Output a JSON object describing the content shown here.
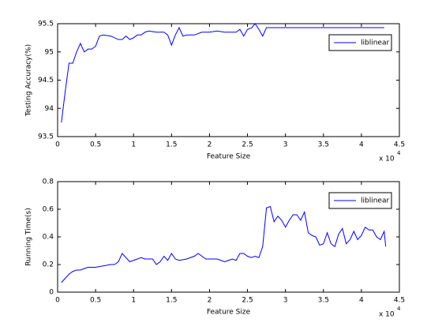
{
  "chart_data": [
    {
      "type": "line",
      "y_label": "Testing Accuracy(%)",
      "x_label": "Feature Size",
      "x_multiplier": "x 10",
      "x_multiplier_exponent": "4",
      "legend": "northeast",
      "xlim": [
        0,
        4.5
      ],
      "xticks": [
        0,
        0.5,
        1,
        1.5,
        2,
        2.5,
        3,
        3.5,
        4,
        4.5
      ],
      "ylim": [
        93.5,
        95.5
      ],
      "yticks": [
        93.5,
        94,
        94.5,
        95,
        95.5
      ],
      "x": [
        0.05,
        0.1,
        0.15,
        0.2,
        0.25,
        0.3,
        0.35,
        0.4,
        0.45,
        0.5,
        0.55,
        0.6,
        0.7,
        0.8,
        0.85,
        0.9,
        0.95,
        1.0,
        1.05,
        1.1,
        1.15,
        1.2,
        1.3,
        1.4,
        1.45,
        1.5,
        1.55,
        1.6,
        1.65,
        1.7,
        1.8,
        1.9,
        2.0,
        2.1,
        2.2,
        2.3,
        2.35,
        2.4,
        2.45,
        2.5,
        2.55,
        2.6,
        2.65,
        2.7,
        2.75,
        4.3
      ],
      "series": [
        {
          "name": "liblinear",
          "color": "#0000ff",
          "values": [
            93.75,
            94.3,
            94.8,
            94.8,
            95.0,
            95.15,
            95.0,
            95.05,
            95.05,
            95.1,
            95.28,
            95.3,
            95.28,
            95.22,
            95.22,
            95.28,
            95.22,
            95.25,
            95.3,
            95.3,
            95.35,
            95.37,
            95.35,
            95.35,
            95.3,
            95.12,
            95.3,
            95.43,
            95.28,
            95.3,
            95.3,
            95.35,
            95.35,
            95.37,
            95.35,
            95.35,
            95.35,
            95.4,
            95.28,
            95.4,
            95.42,
            95.5,
            95.4,
            95.28,
            95.43,
            95.43
          ]
        }
      ]
    },
    {
      "type": "line",
      "y_label": "Running Time(s)",
      "x_label": "Feature Size",
      "x_multiplier": "x 10",
      "x_multiplier_exponent": "4",
      "legend": "northeast",
      "xlim": [
        0,
        4.5
      ],
      "xticks": [
        0,
        0.5,
        1,
        1.5,
        2,
        2.5,
        3,
        3.5,
        4,
        4.5
      ],
      "ylim": [
        0,
        0.8
      ],
      "yticks": [
        0,
        0.2,
        0.4,
        0.6,
        0.8
      ],
      "x": [
        0.05,
        0.1,
        0.15,
        0.2,
        0.25,
        0.3,
        0.35,
        0.4,
        0.5,
        0.6,
        0.7,
        0.75,
        0.8,
        0.85,
        0.9,
        0.95,
        1.0,
        1.1,
        1.15,
        1.2,
        1.25,
        1.3,
        1.35,
        1.4,
        1.45,
        1.5,
        1.55,
        1.6,
        1.7,
        1.8,
        1.85,
        1.9,
        1.95,
        2.0,
        2.1,
        2.15,
        2.2,
        2.25,
        2.3,
        2.35,
        2.4,
        2.45,
        2.5,
        2.55,
        2.6,
        2.65,
        2.7,
        2.75,
        2.8,
        2.85,
        2.9,
        2.95,
        3.0,
        3.05,
        3.1,
        3.15,
        3.2,
        3.25,
        3.3,
        3.35,
        3.4,
        3.45,
        3.5,
        3.55,
        3.6,
        3.65,
        3.7,
        3.75,
        3.8,
        3.85,
        3.9,
        3.95,
        4.0,
        4.05,
        4.1,
        4.15,
        4.2,
        4.25,
        4.3,
        4.32
      ],
      "series": [
        {
          "name": "liblinear",
          "color": "#0000ff",
          "values": [
            0.07,
            0.1,
            0.13,
            0.15,
            0.16,
            0.16,
            0.17,
            0.18,
            0.18,
            0.19,
            0.2,
            0.2,
            0.22,
            0.28,
            0.25,
            0.22,
            0.23,
            0.25,
            0.24,
            0.24,
            0.24,
            0.2,
            0.22,
            0.26,
            0.23,
            0.28,
            0.24,
            0.23,
            0.24,
            0.26,
            0.28,
            0.26,
            0.24,
            0.24,
            0.24,
            0.23,
            0.22,
            0.23,
            0.24,
            0.23,
            0.28,
            0.28,
            0.26,
            0.25,
            0.26,
            0.25,
            0.33,
            0.61,
            0.62,
            0.51,
            0.55,
            0.52,
            0.47,
            0.52,
            0.56,
            0.56,
            0.52,
            0.58,
            0.43,
            0.41,
            0.4,
            0.34,
            0.35,
            0.43,
            0.35,
            0.33,
            0.42,
            0.46,
            0.35,
            0.38,
            0.44,
            0.38,
            0.41,
            0.47,
            0.45,
            0.45,
            0.4,
            0.38,
            0.44,
            0.33
          ]
        }
      ]
    }
  ]
}
